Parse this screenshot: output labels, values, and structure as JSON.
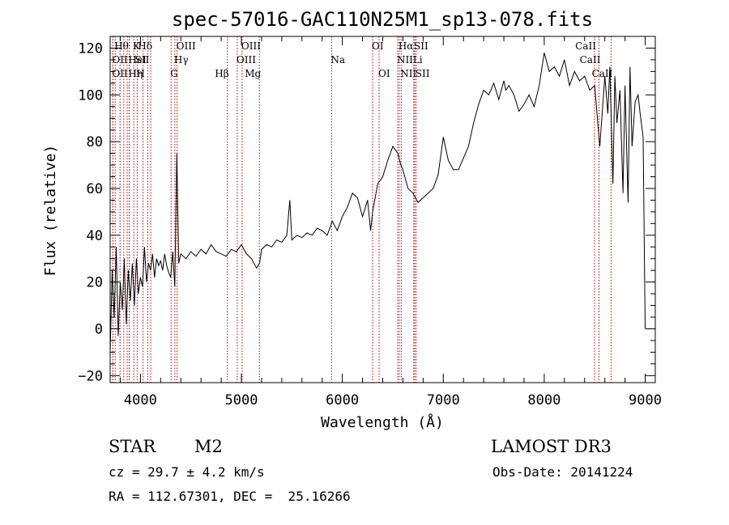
{
  "chart_data": {
    "type": "line",
    "title": "spec-57016-GAC110N25M1_sp13-078.fits",
    "xlabel": "Wavelength (Å)",
    "ylabel": "Flux (relative)",
    "xlim": [
      3700,
      9100
    ],
    "ylim": [
      -23,
      125
    ],
    "x_ticks": [
      4000,
      5000,
      6000,
      7000,
      8000,
      9000
    ],
    "y_ticks": [
      -20,
      0,
      20,
      40,
      60,
      80,
      100,
      120
    ],
    "grid": false,
    "series": [
      {
        "x": [
          3700,
          3720,
          3740,
          3760,
          3780,
          3800,
          3820,
          3840,
          3860,
          3880,
          3900,
          3920,
          3940,
          3960,
          3980,
          4000,
          4020,
          4040,
          4060,
          4080,
          4100,
          4120,
          4140,
          4160,
          4180,
          4200,
          4220,
          4240,
          4260,
          4280,
          4300,
          4320,
          4340,
          4360,
          4380,
          4400,
          4450,
          4500,
          4550,
          4600,
          4650,
          4700,
          4750,
          4800,
          4850,
          4900,
          4950,
          5000,
          5050,
          5100,
          5150,
          5180,
          5200,
          5250,
          5300,
          5350,
          5400,
          5450,
          5480,
          5500,
          5550,
          5600,
          5650,
          5700,
          5750,
          5800,
          5850,
          5900,
          5950,
          6000,
          6050,
          6100,
          6150,
          6200,
          6250,
          6280,
          6300,
          6350,
          6400,
          6450,
          6500,
          6550,
          6580,
          6600,
          6650,
          6700,
          6750,
          6800,
          6850,
          6900,
          6950,
          7000,
          7050,
          7100,
          7150,
          7200,
          7250,
          7300,
          7350,
          7400,
          7450,
          7500,
          7550,
          7600,
          7620,
          7650,
          7700,
          7750,
          7800,
          7850,
          7900,
          7950,
          8000,
          8050,
          8100,
          8150,
          8200,
          8250,
          8300,
          8350,
          8400,
          8450,
          8500,
          8530,
          8550,
          8600,
          8630,
          8650,
          8680,
          8700,
          8720,
          8750,
          8780,
          8800,
          8830,
          8850,
          8870,
          8900,
          8930,
          8950,
          8980,
          9000
        ],
        "y": [
          -10,
          25,
          5,
          35,
          -3,
          20,
          8,
          30,
          2,
          25,
          12,
          28,
          10,
          30,
          15,
          22,
          18,
          35,
          20,
          28,
          25,
          32,
          22,
          30,
          27,
          29,
          25,
          32,
          27,
          24,
          22,
          33,
          18,
          75,
          28,
          32,
          30,
          33,
          31,
          34,
          32,
          36,
          33,
          32,
          31,
          34,
          33,
          36,
          32,
          30,
          26,
          28,
          34,
          36,
          35,
          38,
          37,
          40,
          55,
          38,
          40,
          39,
          41,
          40,
          43,
          42,
          40,
          46,
          42,
          48,
          52,
          58,
          56,
          48,
          55,
          42,
          50,
          62,
          65,
          72,
          78,
          75,
          70,
          68,
          60,
          58,
          54,
          56,
          58,
          60,
          66,
          82,
          72,
          68,
          68,
          73,
          78,
          88,
          96,
          102,
          100,
          105,
          98,
          106,
          102,
          104,
          100,
          93,
          96,
          100,
          95,
          104,
          118,
          110,
          112,
          108,
          115,
          104,
          110,
          106,
          108,
          102,
          104,
          88,
          78,
          108,
          92,
          112,
          62,
          108,
          88,
          102,
          58,
          104,
          54,
          112,
          78,
          97,
          100,
          92,
          82,
          0
        ]
      }
    ],
    "line_markers": [
      {
        "x": 3750,
        "label": "Hθ",
        "row": 0,
        "align": "start"
      },
      {
        "x": 3727,
        "label": "OII",
        "row": 1,
        "align": "start"
      },
      {
        "x": 3727,
        "label": "OII",
        "row": 2,
        "align": "start"
      },
      {
        "x": 3798,
        "label": "",
        "row": -1,
        "align": "start"
      },
      {
        "x": 3835,
        "label": "",
        "row": -1,
        "align": "start"
      },
      {
        "x": 3869,
        "label": "",
        "row": -1,
        "align": "start"
      },
      {
        "x": 3889,
        "label": "Hη",
        "row": 2,
        "align": "start"
      },
      {
        "x": 3889,
        "label": "HeI",
        "row": 1,
        "align": "start"
      },
      {
        "x": 3934,
        "label": "K",
        "row": 0,
        "align": "start"
      },
      {
        "x": 3968,
        "label": "H",
        "row": 2,
        "align": "start"
      },
      {
        "x": 4026,
        "label": "",
        "row": -1,
        "align": "start"
      },
      {
        "x": 4072,
        "label": "SII",
        "row": 1,
        "align": "end"
      },
      {
        "x": 4102,
        "label": "Hδ",
        "row": 0,
        "align": "end"
      },
      {
        "x": 4304,
        "label": "G",
        "row": 2,
        "align": "start"
      },
      {
        "x": 4341,
        "label": "Hγ",
        "row": 1,
        "align": "start"
      },
      {
        "x": 4363,
        "label": "OIII",
        "row": 0,
        "align": "start"
      },
      {
        "x": 4861,
        "label": "Hβ",
        "row": 2,
        "align": "end"
      },
      {
        "x": 4959,
        "label": "OIII",
        "row": 1,
        "align": "start"
      },
      {
        "x": 5007,
        "label": "OIII",
        "row": 0,
        "align": "start"
      },
      {
        "x": 5178,
        "label": "Mg",
        "row": 2,
        "align": "end"
      },
      {
        "x": 5893,
        "label": "Na",
        "row": 1,
        "align": "start"
      },
      {
        "x": 6300,
        "label": "OI",
        "row": 0,
        "align": "start"
      },
      {
        "x": 6364,
        "label": "OI",
        "row": 2,
        "align": "start"
      },
      {
        "x": 6548,
        "label": "NII",
        "row": 1,
        "align": "start"
      },
      {
        "x": 6563,
        "label": "Hα",
        "row": 0,
        "align": "start"
      },
      {
        "x": 6583,
        "label": "NII",
        "row": 2,
        "align": "start"
      },
      {
        "x": 6707,
        "label": "Li",
        "row": 1,
        "align": "start"
      },
      {
        "x": 6717,
        "label": "SII",
        "row": 0,
        "align": "start"
      },
      {
        "x": 6731,
        "label": "SII",
        "row": 2,
        "align": "start"
      },
      {
        "x": 8498,
        "label": "CaII",
        "row": 0,
        "align": "end"
      },
      {
        "x": 8542,
        "label": "CaII",
        "row": 1,
        "align": "end"
      },
      {
        "x": 8662,
        "label": "CaII",
        "row": 2,
        "align": "end"
      }
    ]
  },
  "info": {
    "class_label": "STAR",
    "subclass": "M2",
    "survey": "LAMOST DR3",
    "cz": "cz = 29.7 ± 4.2 km/s",
    "obs_date": "Obs-Date: 20141224",
    "coords": "RA = 112.67301, DEC =  25.16266"
  }
}
